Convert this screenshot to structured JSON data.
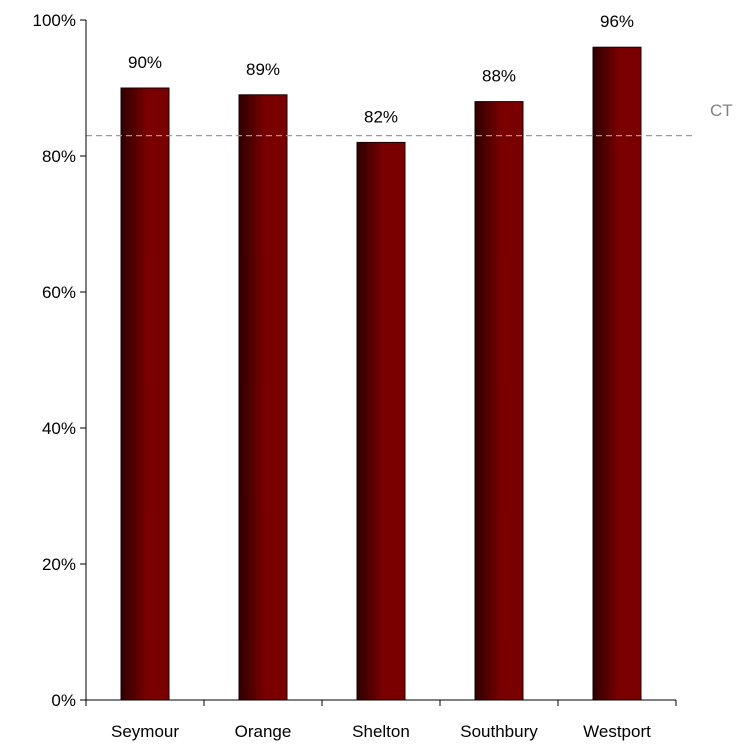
{
  "chart_data": {
    "type": "bar",
    "categories": [
      "Seymour",
      "Orange",
      "Shelton",
      "Southbury",
      "Westport"
    ],
    "values": [
      90,
      89,
      82,
      88,
      96
    ],
    "data_labels": [
      "90%",
      "89%",
      "82%",
      "88%",
      "96%"
    ],
    "ylim": [
      0,
      100
    ],
    "y_ticks": [
      0,
      20,
      40,
      60,
      80,
      100
    ],
    "y_tick_labels": [
      "0%",
      "20%",
      "40%",
      "60%",
      "80%",
      "100%"
    ],
    "reference_line": {
      "label": "CT",
      "value": 83,
      "style": "dashed",
      "color": "#999999"
    },
    "bar_color": "#7a0000",
    "bar_color_dark": "#2e0000",
    "grid": false,
    "legend": "none"
  }
}
